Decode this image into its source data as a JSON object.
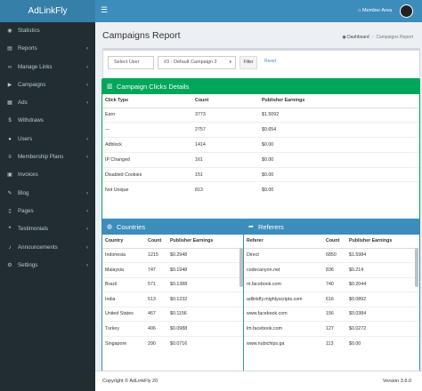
{
  "app": {
    "logo": "AdLinkFly"
  },
  "navbar": {
    "member_label": "Member Area"
  },
  "sidebar": {
    "items": [
      {
        "label": "Statistics",
        "icon": "dashboard-icon",
        "glyph": "◉",
        "chevron": false
      },
      {
        "label": "Reports",
        "icon": "chart-icon",
        "glyph": "▤",
        "chevron": true
      },
      {
        "label": "Manage Links",
        "icon": "link-icon",
        "glyph": "∞",
        "chevron": true
      },
      {
        "label": "Campaigns",
        "icon": "bullhorn-icon",
        "glyph": "▶",
        "chevron": true
      },
      {
        "label": "Ads",
        "icon": "ads-icon",
        "glyph": "▦",
        "chevron": true
      },
      {
        "label": "Withdraws",
        "icon": "money-icon",
        "glyph": "$",
        "chevron": false
      },
      {
        "label": "Users",
        "icon": "users-icon",
        "glyph": "●",
        "chevron": true
      },
      {
        "label": "Membership Plans",
        "icon": "list-icon",
        "glyph": "≡",
        "chevron": true
      },
      {
        "label": "Invoices",
        "icon": "invoice-icon",
        "glyph": "▣",
        "chevron": false
      },
      {
        "label": "Blog",
        "icon": "blog-icon",
        "glyph": "✎",
        "chevron": true
      },
      {
        "label": "Pages",
        "icon": "pages-icon",
        "glyph": "▯",
        "chevron": true
      },
      {
        "label": "Testimonials",
        "icon": "comments-icon",
        "glyph": "❝",
        "chevron": true
      },
      {
        "label": "Announcements",
        "icon": "bell-icon",
        "glyph": "♪",
        "chevron": true
      },
      {
        "label": "Settings",
        "icon": "cogs-icon",
        "glyph": "⚙",
        "chevron": true
      }
    ]
  },
  "page": {
    "title": "Campaigns Report"
  },
  "breadcrumb": {
    "home": "Dashboard",
    "current": "Campaigns Report"
  },
  "filter": {
    "user_select": "Select User",
    "campaign_select": "#3 - Default Campaign 2",
    "filter_button": "Filter",
    "reset_link": "Reset"
  },
  "clicks": {
    "title": "Campaign Clicks Details",
    "headers": [
      "Click Type",
      "Count",
      "Publisher Earnings"
    ],
    "rows": [
      [
        "Earn",
        "3773",
        "$1.5092"
      ],
      [
        "---",
        "2757",
        "$0.654"
      ],
      [
        "Adblock",
        "1414",
        "$0.00"
      ],
      [
        "IP Changed",
        "161",
        "$0.00"
      ],
      [
        "Disabled Cookies",
        "151",
        "$0.00"
      ],
      [
        "Not Unique",
        "813",
        "$0.00"
      ]
    ]
  },
  "countries": {
    "title": "Countries",
    "headers": [
      "Country",
      "Count",
      "Publisher Earnings"
    ],
    "rows": [
      [
        "Indonesia",
        "1215",
        "$0.2948"
      ],
      [
        "Malaysia",
        "747",
        "$0.1948"
      ],
      [
        "Brazil",
        "571",
        "$0.1388"
      ],
      [
        "India",
        "513",
        "$0.1232"
      ],
      [
        "United States",
        "467",
        "$0.1156"
      ],
      [
        "Turkey",
        "406",
        "$0.0988"
      ],
      [
        "Singapore",
        "290",
        "$0.0716"
      ]
    ]
  },
  "referers": {
    "title": "Referers",
    "headers": [
      "Referer",
      "Count",
      "Publisher Earnings"
    ],
    "rows": [
      [
        "Direct",
        "6850",
        "$1.5984"
      ],
      [
        "codecanyon.net",
        "836",
        "$0.214"
      ],
      [
        "m.facebook.com",
        "740",
        "$0.2044"
      ],
      [
        "adlinkfly.mightyscripts.com",
        "616",
        "$0.0892"
      ],
      [
        "www.facebook.com",
        "156",
        "$0.0384"
      ],
      [
        "lm.facebook.com",
        "127",
        "$0.0272"
      ],
      [
        "www.nubichips.ga",
        "113",
        "$0.00"
      ]
    ]
  },
  "footer": {
    "copyright": "Copyright © AdLinkFly 20",
    "version": "Version 3.6.0"
  },
  "colors": {
    "sidebar": "#222d32",
    "header": "#3c8dbc",
    "success": "#00a65a"
  }
}
